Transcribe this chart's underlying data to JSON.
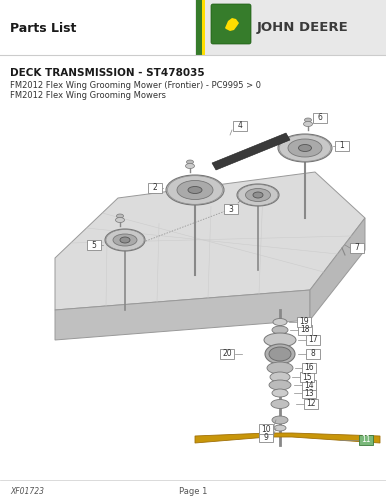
{
  "title": "Parts List",
  "subtitle": "DECK TRANSMISSION - ST478035",
  "sub1": "FM2012 Flex Wing Grooming Mower (Frontier) - PC9995 > 0",
  "sub2": "FM2012 Flex Wing Grooming Mowers",
  "footer_left": "XF01723",
  "footer_center": "Page 1",
  "bg_color": "#ffffff",
  "header_bg": "#e8e8e8",
  "jd_green_dark": "#367c2b",
  "jd_yellow": "#ffde00",
  "jd_gray_text": "#3a3a3a",
  "title_color": "#1a1a1a",
  "text_color": "#333333",
  "deck_face_color": "#e0e0e0",
  "deck_edge_color": "#aaaaaa",
  "pulley_outer": "#c8c8c8",
  "pulley_mid": "#aaaaaa",
  "pulley_hub": "#909090",
  "shaft_color": "#888888",
  "belt_color": "#3a3a3a",
  "callout_bg": "#ffffff",
  "callout_border": "#888888",
  "blade_color": "#c8960a",
  "blade_outline": "#a07008",
  "green_callout_bg": "#7ab87a",
  "green_callout_border": "#3a7a3a"
}
